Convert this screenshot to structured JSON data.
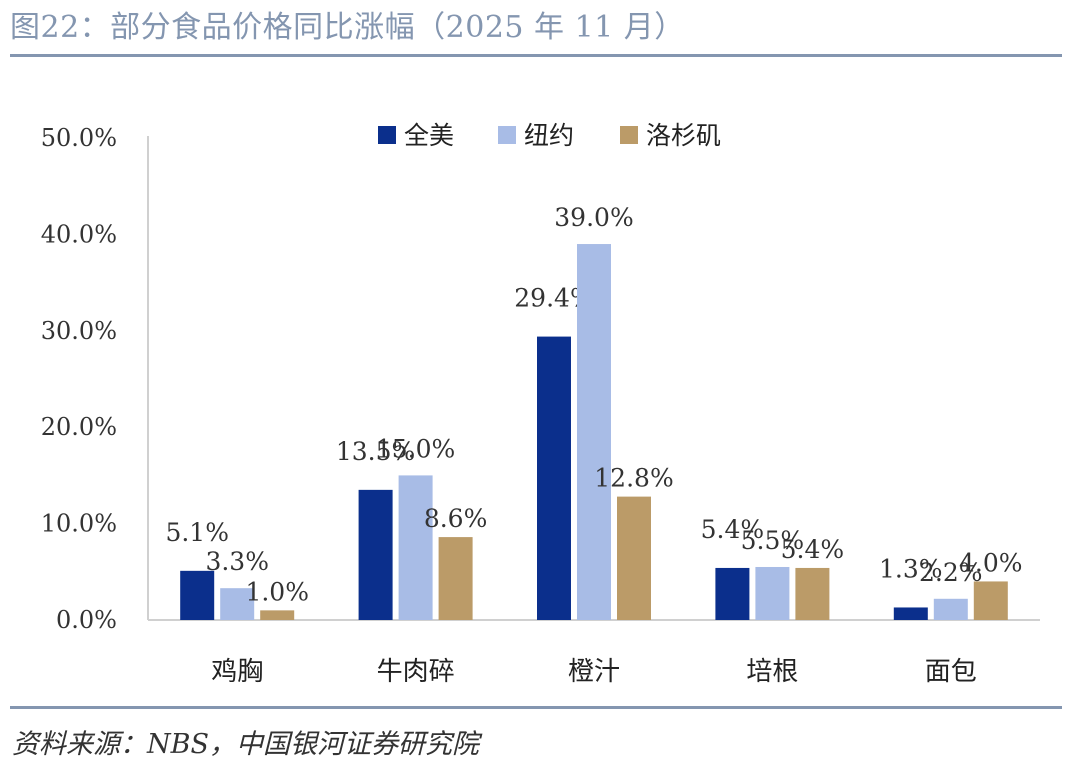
{
  "title": "图22：部分食品价格同比涨幅（2025 年 11 月）",
  "source": "资料来源：NBS，中国银河证券研究院",
  "chart_data": {
    "type": "bar",
    "categories": [
      "鸡胸",
      "牛肉碎",
      "橙汁",
      "培根",
      "面包"
    ],
    "series": [
      {
        "name": "全美",
        "color": "#0b2f8c",
        "values": [
          5.1,
          13.5,
          29.4,
          5.4,
          1.3
        ]
      },
      {
        "name": "纽约",
        "color": "#a8bce6",
        "values": [
          3.3,
          15.0,
          39.0,
          5.5,
          2.2
        ]
      },
      {
        "name": "洛杉矶",
        "color": "#bb9b68",
        "values": [
          1.0,
          8.6,
          12.8,
          5.4,
          4.0
        ]
      }
    ],
    "y_ticks": [
      "0.0%",
      "10.0%",
      "20.0%",
      "30.0%",
      "40.0%",
      "50.0%"
    ],
    "ylim": [
      0,
      50
    ],
    "value_suffix": "%",
    "grid": false,
    "legend_position": "top-center"
  }
}
